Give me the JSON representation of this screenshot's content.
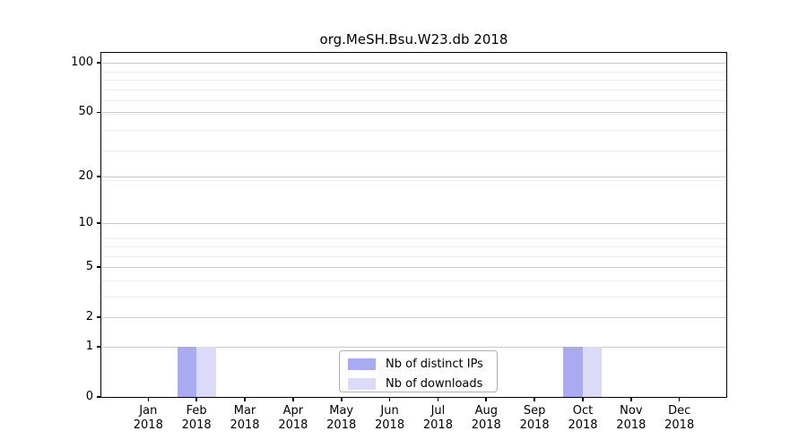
{
  "chart_data": {
    "type": "bar",
    "title": "org.MeSH.Bsu.W23.db 2018",
    "categories": [
      {
        "month": "Jan",
        "year": "2018"
      },
      {
        "month": "Feb",
        "year": "2018"
      },
      {
        "month": "Mar",
        "year": "2018"
      },
      {
        "month": "Apr",
        "year": "2018"
      },
      {
        "month": "May",
        "year": "2018"
      },
      {
        "month": "Jun",
        "year": "2018"
      },
      {
        "month": "Jul",
        "year": "2018"
      },
      {
        "month": "Aug",
        "year": "2018"
      },
      {
        "month": "Sep",
        "year": "2018"
      },
      {
        "month": "Oct",
        "year": "2018"
      },
      {
        "month": "Nov",
        "year": "2018"
      },
      {
        "month": "Dec",
        "year": "2018"
      }
    ],
    "series": [
      {
        "name": "Nb of distinct IPs",
        "color": "#aaaaf0",
        "values": [
          0,
          1,
          0,
          0,
          0,
          0,
          0,
          0,
          0,
          1,
          0,
          0
        ]
      },
      {
        "name": "Nb of downloads",
        "color": "#dbdbf8",
        "values": [
          0,
          1,
          0,
          0,
          0,
          0,
          0,
          0,
          0,
          1,
          0,
          0
        ]
      }
    ],
    "yscale": "log1p",
    "yticks": [
      0,
      1,
      2,
      5,
      10,
      20,
      50,
      100
    ],
    "ylim": [
      0,
      115
    ],
    "grid": "horizontal",
    "legend_position": "lower center",
    "colors": {
      "axis": "#000000",
      "grid_major": "#cccccc",
      "grid_minor": "#ececec",
      "background": "#ffffff"
    }
  }
}
